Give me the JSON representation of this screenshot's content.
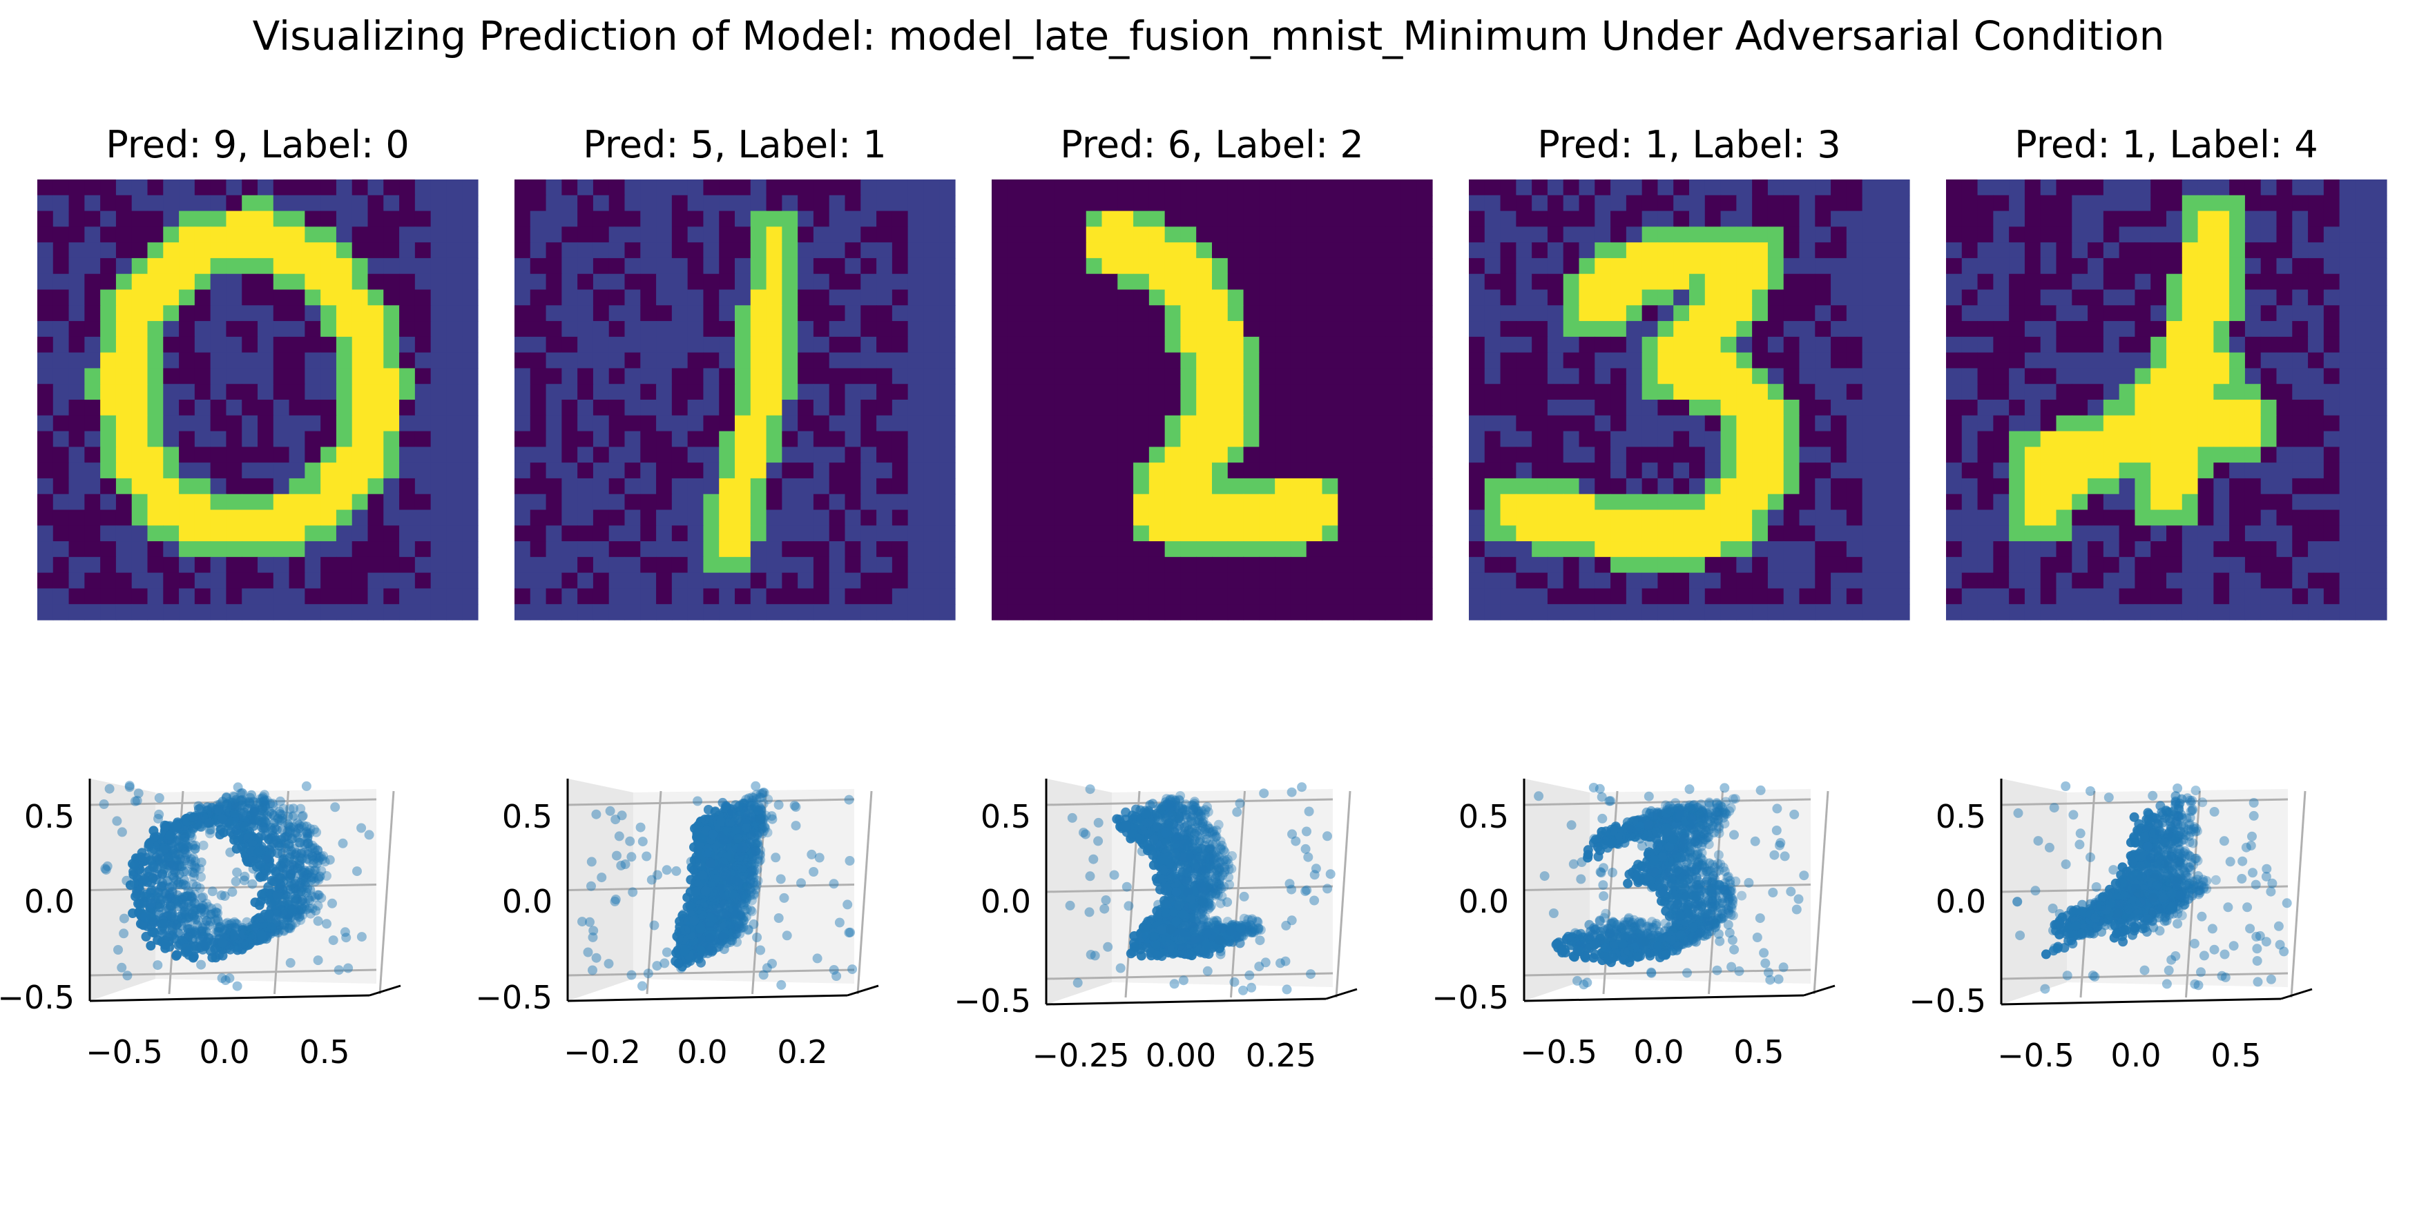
{
  "title": "Visualizing Prediction of Model: model_late_fusion_mnist_Minimum Under Adversarial Condition",
  "colors": {
    "scatter": "#1f77b4",
    "viridis_dark": "#440154",
    "viridis_blue": "#3b3f8c",
    "viridis_green": "#5ec962",
    "viridis_yellow": "#fde725",
    "pane": "#f2f2f2",
    "grid": "#b0b0b0"
  },
  "chart_data": [
    {
      "type": "heatmap",
      "title": "Pred: 9, Label: 0",
      "digit": "0",
      "pred": 9,
      "label": 0,
      "adversarial_noise": true
    },
    {
      "type": "heatmap",
      "title": "Pred: 5, Label: 1",
      "digit": "1",
      "pred": 5,
      "label": 1,
      "adversarial_noise": true
    },
    {
      "type": "heatmap",
      "title": "Pred: 6, Label: 2",
      "digit": "2",
      "pred": 6,
      "label": 2,
      "adversarial_noise": false
    },
    {
      "type": "heatmap",
      "title": "Pred: 1, Label: 3",
      "digit": "3",
      "pred": 1,
      "label": 3,
      "adversarial_noise": true
    },
    {
      "type": "heatmap",
      "title": "Pred: 1, Label: 4",
      "digit": "4",
      "pred": 1,
      "label": 4,
      "adversarial_noise": true
    },
    {
      "type": "scatter",
      "projection": "3d",
      "shape": "0",
      "xlim": [
        -0.75,
        0.75
      ],
      "ylim": [
        -0.55,
        0.6
      ],
      "xticks": [
        "−0.5",
        "0.0",
        "0.5"
      ],
      "yticks": [
        "0.5",
        "0.0",
        "−0.5"
      ]
    },
    {
      "type": "scatter",
      "projection": "3d",
      "shape": "1",
      "xlim": [
        -0.35,
        0.35
      ],
      "ylim": [
        -0.55,
        0.65
      ],
      "xticks": [
        "−0.2",
        "0.0",
        "0.2"
      ],
      "yticks": [
        "0.5",
        "0.0",
        "−0.5"
      ]
    },
    {
      "type": "scatter",
      "projection": "3d",
      "shape": "2",
      "xlim": [
        -0.4,
        0.4
      ],
      "ylim": [
        -0.6,
        0.6
      ],
      "xticks": [
        "−0.25",
        "0.00",
        "0.25"
      ],
      "yticks": [
        "0.5",
        "0.0",
        "−0.5"
      ]
    },
    {
      "type": "scatter",
      "projection": "3d",
      "shape": "3",
      "xlim": [
        -0.75,
        0.75
      ],
      "ylim": [
        -0.6,
        0.6
      ],
      "xticks": [
        "−0.5",
        "0.0",
        "0.5"
      ],
      "yticks": [
        "0.5",
        "0.0",
        "−0.5"
      ]
    },
    {
      "type": "scatter",
      "projection": "3d",
      "shape": "4",
      "xlim": [
        -0.75,
        0.75
      ],
      "ylim": [
        -0.55,
        0.7
      ],
      "xticks": [
        "−0.5",
        "0.0",
        "0.5"
      ],
      "yticks": [
        "0.5",
        "0.0",
        "−0.5"
      ]
    }
  ]
}
